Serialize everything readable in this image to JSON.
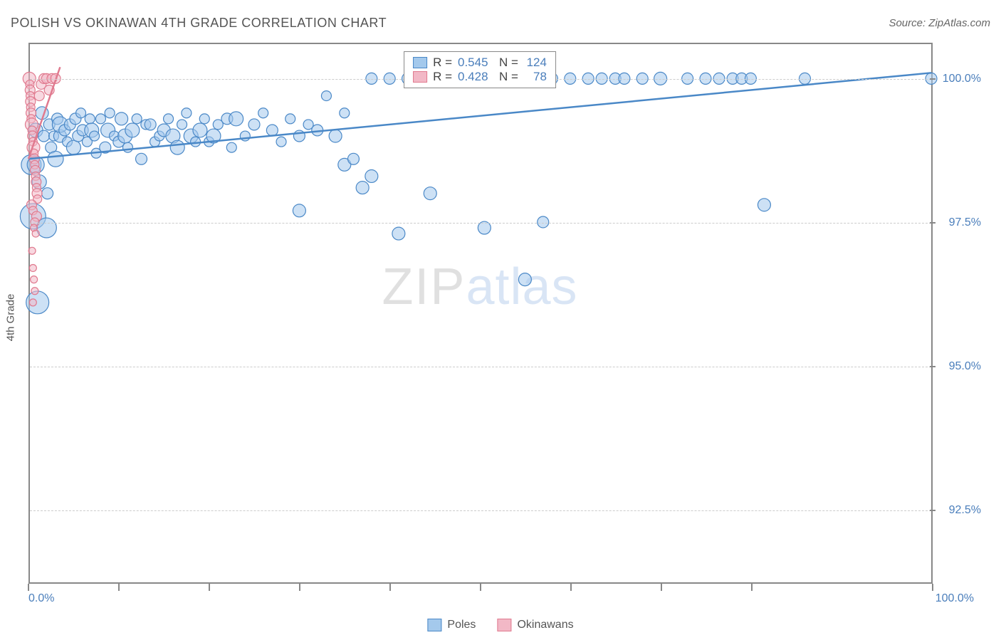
{
  "title": "POLISH VS OKINAWAN 4TH GRADE CORRELATION CHART",
  "source": "Source: ZipAtlas.com",
  "watermark": {
    "a": "ZIP",
    "b": "atlas"
  },
  "yaxis_title": "4th Grade",
  "chart": {
    "type": "scatter",
    "xlim": [
      0,
      100
    ],
    "ylim": [
      91.2,
      100.6
    ],
    "grid_color": "#cccccc",
    "axis_color": "#888888",
    "yticks": [
      {
        "v": 100.0,
        "label": "100.0%"
      },
      {
        "v": 97.5,
        "label": "97.5%"
      },
      {
        "v": 95.0,
        "label": "95.0%"
      },
      {
        "v": 92.5,
        "label": "92.5%"
      }
    ],
    "xlabel_start": "0.0%",
    "xlabel_end": "100.0%",
    "xtick_positions": [
      0,
      10,
      20,
      30,
      40,
      50,
      60,
      70,
      80,
      100
    ],
    "series": [
      {
        "name": "Poles",
        "fill": "#a4c9ec",
        "stroke": "#4a88c7",
        "opacity": 0.55,
        "trend": {
          "x1": 0,
          "y1": 98.6,
          "x2": 100,
          "y2": 100.1,
          "width": 2.5
        },
        "points": [
          {
            "x": 0.3,
            "y": 98.5,
            "r": 14
          },
          {
            "x": 0.5,
            "y": 97.6,
            "r": 18
          },
          {
            "x": 0.8,
            "y": 98.5,
            "r": 12
          },
          {
            "x": 0.8,
            "y": 99.1,
            "r": 10
          },
          {
            "x": 1.0,
            "y": 96.1,
            "r": 16
          },
          {
            "x": 1.2,
            "y": 98.2,
            "r": 10
          },
          {
            "x": 1.5,
            "y": 99.4,
            "r": 9
          },
          {
            "x": 1.7,
            "y": 99.0,
            "r": 8
          },
          {
            "x": 2.0,
            "y": 97.4,
            "r": 14
          },
          {
            "x": 2.1,
            "y": 98.0,
            "r": 8
          },
          {
            "x": 2.3,
            "y": 99.2,
            "r": 8
          },
          {
            "x": 2.5,
            "y": 98.8,
            "r": 8
          },
          {
            "x": 2.8,
            "y": 99.0,
            "r": 7
          },
          {
            "x": 3.0,
            "y": 98.6,
            "r": 11
          },
          {
            "x": 3.2,
            "y": 99.3,
            "r": 8
          },
          {
            "x": 3.5,
            "y": 99.0,
            "r": 9
          },
          {
            "x": 3.5,
            "y": 99.2,
            "r": 11
          },
          {
            "x": 4.0,
            "y": 99.1,
            "r": 8
          },
          {
            "x": 4.3,
            "y": 98.9,
            "r": 7
          },
          {
            "x": 4.6,
            "y": 99.2,
            "r": 8
          },
          {
            "x": 5.0,
            "y": 98.8,
            "r": 10
          },
          {
            "x": 5.2,
            "y": 99.3,
            "r": 8
          },
          {
            "x": 5.5,
            "y": 99.0,
            "r": 8
          },
          {
            "x": 5.8,
            "y": 99.4,
            "r": 7
          },
          {
            "x": 6.0,
            "y": 99.1,
            "r": 8
          },
          {
            "x": 6.5,
            "y": 98.9,
            "r": 7
          },
          {
            "x": 6.8,
            "y": 99.3,
            "r": 7
          },
          {
            "x": 7.0,
            "y": 99.1,
            "r": 10
          },
          {
            "x": 7.3,
            "y": 99.0,
            "r": 7
          },
          {
            "x": 7.5,
            "y": 98.7,
            "r": 7
          },
          {
            "x": 8.0,
            "y": 99.3,
            "r": 7
          },
          {
            "x": 8.5,
            "y": 98.8,
            "r": 8
          },
          {
            "x": 8.8,
            "y": 99.1,
            "r": 10
          },
          {
            "x": 9.0,
            "y": 99.4,
            "r": 7
          },
          {
            "x": 9.5,
            "y": 99.0,
            "r": 7
          },
          {
            "x": 10.0,
            "y": 98.9,
            "r": 8
          },
          {
            "x": 10.3,
            "y": 99.3,
            "r": 9
          },
          {
            "x": 10.7,
            "y": 99.0,
            "r": 10
          },
          {
            "x": 11.0,
            "y": 98.8,
            "r": 7
          },
          {
            "x": 11.5,
            "y": 99.1,
            "r": 10
          },
          {
            "x": 12.0,
            "y": 99.3,
            "r": 7
          },
          {
            "x": 12.5,
            "y": 98.6,
            "r": 8
          },
          {
            "x": 13.0,
            "y": 99.2,
            "r": 7
          },
          {
            "x": 13.5,
            "y": 99.2,
            "r": 8
          },
          {
            "x": 14.0,
            "y": 98.9,
            "r": 7
          },
          {
            "x": 14.5,
            "y": 99.0,
            "r": 7
          },
          {
            "x": 15.0,
            "y": 99.1,
            "r": 9
          },
          {
            "x": 15.5,
            "y": 99.3,
            "r": 7
          },
          {
            "x": 16.0,
            "y": 99.0,
            "r": 10
          },
          {
            "x": 16.5,
            "y": 98.8,
            "r": 10
          },
          {
            "x": 17.0,
            "y": 99.2,
            "r": 7
          },
          {
            "x": 17.5,
            "y": 99.4,
            "r": 7
          },
          {
            "x": 18.0,
            "y": 99.0,
            "r": 10
          },
          {
            "x": 18.5,
            "y": 98.9,
            "r": 7
          },
          {
            "x": 19.0,
            "y": 99.1,
            "r": 10
          },
          {
            "x": 19.5,
            "y": 99.3,
            "r": 7
          },
          {
            "x": 20.0,
            "y": 98.9,
            "r": 7
          },
          {
            "x": 20.5,
            "y": 99.0,
            "r": 10
          },
          {
            "x": 21.0,
            "y": 99.2,
            "r": 7
          },
          {
            "x": 22.0,
            "y": 99.3,
            "r": 8
          },
          {
            "x": 22.5,
            "y": 98.8,
            "r": 7
          },
          {
            "x": 23.0,
            "y": 99.3,
            "r": 10
          },
          {
            "x": 24.0,
            "y": 99.0,
            "r": 7
          },
          {
            "x": 25.0,
            "y": 99.2,
            "r": 8
          },
          {
            "x": 26.0,
            "y": 99.4,
            "r": 7
          },
          {
            "x": 27.0,
            "y": 99.1,
            "r": 8
          },
          {
            "x": 28.0,
            "y": 98.9,
            "r": 7
          },
          {
            "x": 29.0,
            "y": 99.3,
            "r": 7
          },
          {
            "x": 30.0,
            "y": 99.0,
            "r": 8
          },
          {
            "x": 30.0,
            "y": 97.7,
            "r": 9
          },
          {
            "x": 31.0,
            "y": 99.2,
            "r": 7
          },
          {
            "x": 32.0,
            "y": 99.1,
            "r": 8
          },
          {
            "x": 33.0,
            "y": 99.7,
            "r": 7
          },
          {
            "x": 34.0,
            "y": 99.0,
            "r": 9
          },
          {
            "x": 35.0,
            "y": 99.4,
            "r": 7
          },
          {
            "x": 35.0,
            "y": 98.5,
            "r": 9
          },
          {
            "x": 36.0,
            "y": 98.6,
            "r": 8
          },
          {
            "x": 37.0,
            "y": 98.1,
            "r": 9
          },
          {
            "x": 38.0,
            "y": 100.0,
            "r": 8
          },
          {
            "x": 38.0,
            "y": 98.3,
            "r": 9
          },
          {
            "x": 40.0,
            "y": 100.0,
            "r": 8
          },
          {
            "x": 41.0,
            "y": 97.3,
            "r": 9
          },
          {
            "x": 42.0,
            "y": 100.0,
            "r": 8
          },
          {
            "x": 44.0,
            "y": 100.0,
            "r": 8
          },
          {
            "x": 44.5,
            "y": 98.0,
            "r": 9
          },
          {
            "x": 46.0,
            "y": 100.0,
            "r": 8
          },
          {
            "x": 48.0,
            "y": 100.0,
            "r": 8
          },
          {
            "x": 50.0,
            "y": 100.0,
            "r": 8
          },
          {
            "x": 50.5,
            "y": 97.4,
            "r": 9
          },
          {
            "x": 52.0,
            "y": 100.0,
            "r": 8
          },
          {
            "x": 54.0,
            "y": 100.0,
            "r": 8
          },
          {
            "x": 55.0,
            "y": 96.5,
            "r": 9
          },
          {
            "x": 56.0,
            "y": 100.0,
            "r": 8
          },
          {
            "x": 57.0,
            "y": 97.5,
            "r": 8
          },
          {
            "x": 58.0,
            "y": 100.0,
            "r": 8
          },
          {
            "x": 60.0,
            "y": 100.0,
            "r": 8
          },
          {
            "x": 62.0,
            "y": 100.0,
            "r": 8
          },
          {
            "x": 63.5,
            "y": 100.0,
            "r": 8
          },
          {
            "x": 65.0,
            "y": 100.0,
            "r": 8
          },
          {
            "x": 66.0,
            "y": 100.0,
            "r": 8
          },
          {
            "x": 68.0,
            "y": 100.0,
            "r": 8
          },
          {
            "x": 70.0,
            "y": 100.0,
            "r": 9
          },
          {
            "x": 73.0,
            "y": 100.0,
            "r": 8
          },
          {
            "x": 75.0,
            "y": 100.0,
            "r": 8
          },
          {
            "x": 76.5,
            "y": 100.0,
            "r": 8
          },
          {
            "x": 78.0,
            "y": 100.0,
            "r": 8
          },
          {
            "x": 79.0,
            "y": 100.0,
            "r": 8
          },
          {
            "x": 80.0,
            "y": 100.0,
            "r": 8
          },
          {
            "x": 81.5,
            "y": 97.8,
            "r": 9
          },
          {
            "x": 86.0,
            "y": 100.0,
            "r": 8
          },
          {
            "x": 100.0,
            "y": 100.0,
            "r": 8
          }
        ]
      },
      {
        "name": "Okinawans",
        "fill": "#f2b8c6",
        "stroke": "#e07a8f",
        "opacity": 0.55,
        "trend": {
          "x1": 0,
          "y1": 98.6,
          "x2": 3.5,
          "y2": 100.2,
          "width": 2.5
        },
        "points": [
          {
            "x": 0.1,
            "y": 100.0,
            "r": 9
          },
          {
            "x": 0.15,
            "y": 99.9,
            "r": 6
          },
          {
            "x": 0.18,
            "y": 99.8,
            "r": 7
          },
          {
            "x": 0.2,
            "y": 99.7,
            "r": 6
          },
          {
            "x": 0.22,
            "y": 99.6,
            "r": 7
          },
          {
            "x": 0.25,
            "y": 99.5,
            "r": 6
          },
          {
            "x": 0.28,
            "y": 99.4,
            "r": 7
          },
          {
            "x": 0.3,
            "y": 99.3,
            "r": 6
          },
          {
            "x": 0.35,
            "y": 99.2,
            "r": 9
          },
          {
            "x": 0.4,
            "y": 99.1,
            "r": 6
          },
          {
            "x": 0.45,
            "y": 99.0,
            "r": 7
          },
          {
            "x": 0.5,
            "y": 98.9,
            "r": 6
          },
          {
            "x": 0.55,
            "y": 98.8,
            "r": 9
          },
          {
            "x": 0.6,
            "y": 98.7,
            "r": 6
          },
          {
            "x": 0.65,
            "y": 98.6,
            "r": 7
          },
          {
            "x": 0.7,
            "y": 98.5,
            "r": 6
          },
          {
            "x": 0.75,
            "y": 98.4,
            "r": 7
          },
          {
            "x": 0.8,
            "y": 98.3,
            "r": 6
          },
          {
            "x": 0.85,
            "y": 98.2,
            "r": 7
          },
          {
            "x": 0.9,
            "y": 98.1,
            "r": 6
          },
          {
            "x": 0.95,
            "y": 98.0,
            "r": 7
          },
          {
            "x": 1.0,
            "y": 97.9,
            "r": 6
          },
          {
            "x": 0.35,
            "y": 97.8,
            "r": 7
          },
          {
            "x": 0.5,
            "y": 97.7,
            "r": 6
          },
          {
            "x": 0.9,
            "y": 97.6,
            "r": 7
          },
          {
            "x": 0.7,
            "y": 97.5,
            "r": 6
          },
          {
            "x": 0.6,
            "y": 97.4,
            "r": 5
          },
          {
            "x": 0.8,
            "y": 97.3,
            "r": 5
          },
          {
            "x": 0.4,
            "y": 97.0,
            "r": 5
          },
          {
            "x": 0.5,
            "y": 96.7,
            "r": 5
          },
          {
            "x": 0.6,
            "y": 96.5,
            "r": 5
          },
          {
            "x": 0.7,
            "y": 96.3,
            "r": 5
          },
          {
            "x": 0.5,
            "y": 96.1,
            "r": 5
          },
          {
            "x": 1.2,
            "y": 99.7,
            "r": 7
          },
          {
            "x": 1.4,
            "y": 99.9,
            "r": 7
          },
          {
            "x": 1.7,
            "y": 100.0,
            "r": 7
          },
          {
            "x": 2.0,
            "y": 100.0,
            "r": 7
          },
          {
            "x": 2.3,
            "y": 99.8,
            "r": 7
          },
          {
            "x": 2.6,
            "y": 100.0,
            "r": 7
          },
          {
            "x": 3.0,
            "y": 100.0,
            "r": 7
          }
        ]
      }
    ]
  },
  "stats": {
    "rows": [
      {
        "swatch_fill": "#a4c9ec",
        "swatch_stroke": "#4a88c7",
        "r": "0.545",
        "n": "124"
      },
      {
        "swatch_fill": "#f2b8c6",
        "swatch_stroke": "#e07a8f",
        "r": "0.428",
        "n": "78"
      }
    ],
    "labels": {
      "r": "R =",
      "n": "N ="
    }
  },
  "legend": {
    "items": [
      {
        "label": "Poles",
        "fill": "#a4c9ec",
        "stroke": "#4a88c7"
      },
      {
        "label": "Okinawans",
        "fill": "#f2b8c6",
        "stroke": "#e07a8f"
      }
    ]
  }
}
